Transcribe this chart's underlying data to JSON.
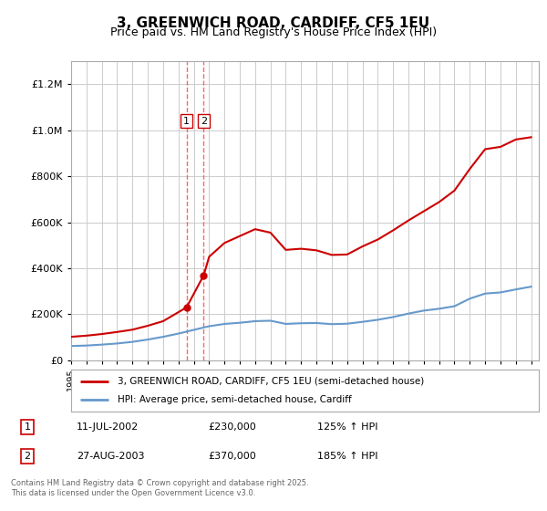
{
  "title": "3, GREENWICH ROAD, CARDIFF, CF5 1EU",
  "subtitle": "Price paid vs. HM Land Registry's House Price Index (HPI)",
  "legend_line1": "3, GREENWICH ROAD, CARDIFF, CF5 1EU (semi-detached house)",
  "legend_line2": "HPI: Average price, semi-detached house, Cardiff",
  "footer": "Contains HM Land Registry data © Crown copyright and database right 2025.\nThis data is licensed under the Open Government Licence v3.0.",
  "transactions": [
    {
      "id": 1,
      "date": "11-JUL-2002",
      "price": 230000,
      "hpi_pct": "125% ↑ HPI",
      "x": 2002.53
    },
    {
      "id": 2,
      "date": "27-AUG-2003",
      "price": 370000,
      "hpi_pct": "185% ↑ HPI",
      "x": 2003.65
    }
  ],
  "red_color": "#cc0000",
  "blue_color": "#6699cc",
  "vline_color": "#ff6666",
  "bg_color": "#ffffff",
  "grid_color": "#cccccc",
  "ylim": [
    0,
    1300000
  ],
  "xlim_start": 1995,
  "xlim_end": 2025.5,
  "hpi_data_x": [
    1995,
    1996,
    1997,
    1998,
    1999,
    2000,
    2001,
    2002,
    2003,
    2004,
    2005,
    2006,
    2007,
    2008,
    2009,
    2010,
    2011,
    2012,
    2013,
    2014,
    2015,
    2016,
    2017,
    2018,
    2019,
    2020,
    2021,
    2022,
    2023,
    2024,
    2025
  ],
  "hpi_data_y": [
    62000,
    64000,
    68000,
    73000,
    80000,
    90000,
    102000,
    116000,
    132000,
    148000,
    158000,
    163000,
    170000,
    172000,
    158000,
    161000,
    162000,
    157000,
    159000,
    167000,
    176000,
    188000,
    203000,
    216000,
    224000,
    235000,
    268000,
    290000,
    295000,
    308000,
    320000
  ],
  "property_data_x": [
    1995,
    1996,
    1997,
    1998,
    1999,
    2000,
    2001,
    2002.53,
    2003.65,
    2004,
    2005,
    2006,
    2007,
    2008,
    2009,
    2010,
    2011,
    2012,
    2013,
    2014,
    2015,
    2016,
    2017,
    2018,
    2019,
    2020,
    2021,
    2022,
    2023,
    2024,
    2025
  ],
  "property_data_y": [
    102000,
    107000,
    114000,
    123000,
    133000,
    150000,
    170000,
    230000,
    370000,
    450000,
    510000,
    540000,
    570000,
    555000,
    480000,
    485000,
    478000,
    458000,
    460000,
    495000,
    525000,
    565000,
    608000,
    648000,
    688000,
    738000,
    832000,
    918000,
    928000,
    960000,
    970000
  ]
}
